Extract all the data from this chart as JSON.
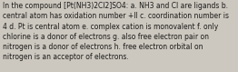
{
  "text": "In the compound [Pt(NH3)2Cl2]SO4: a. NH3 and Cl are ligands b.\ncentral atom has oxidation number +II c. coordination number is\n4 d. Pt is central atom e. complex cation is monovalent f. only\nchlorine is a donor of electrons g. also free electron pair on\nnitrogen is a donor of electrons h. free electron orbital on\nnitrogen is an acceptor of electrons.",
  "bg_color": "#cdc8bf",
  "text_color": "#1a1a1a",
  "font_size": 5.5,
  "fig_width": 2.62,
  "fig_height": 0.79,
  "linespacing": 1.3
}
